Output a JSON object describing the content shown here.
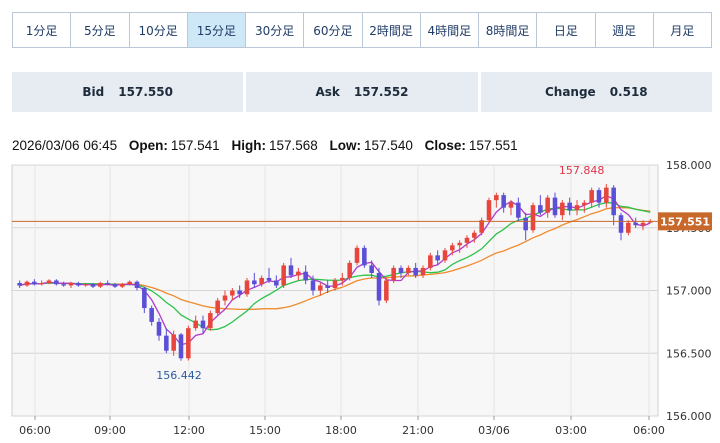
{
  "timeframes": [
    {
      "label": "1分足"
    },
    {
      "label": "5分足"
    },
    {
      "label": "10分足"
    },
    {
      "label": "15分足",
      "active": true
    },
    {
      "label": "30分足"
    },
    {
      "label": "60分足"
    },
    {
      "label": "2時間足"
    },
    {
      "label": "4時間足"
    },
    {
      "label": "8時間足"
    },
    {
      "label": "日足"
    },
    {
      "label": "週足"
    },
    {
      "label": "月足"
    }
  ],
  "quotes": {
    "bid_label": "Bid",
    "bid_value": "157.550",
    "ask_label": "Ask",
    "ask_value": "157.552",
    "change_label": "Change",
    "change_value": "0.518"
  },
  "ohlc": {
    "datetime": "2026/03/06 06:45",
    "open_label": "Open:",
    "open": "157.541",
    "high_label": "High:",
    "high": "157.568",
    "low_label": "Low:",
    "low": "157.540",
    "close_label": "Close:",
    "close": "157.551"
  },
  "chart_data": {
    "type": "candlestick",
    "ylim": [
      156.0,
      158.0
    ],
    "y_ticks": [
      "158.000",
      "157.500",
      "157.000",
      "156.500",
      "156.000"
    ],
    "x_ticks": [
      "06:00",
      "09:00",
      "12:00",
      "15:00",
      "18:00",
      "21:00",
      "03/06",
      "03:00",
      "06:00"
    ],
    "current_price": "157.551",
    "high_annotation": "157.848",
    "low_annotation": "156.442",
    "grid": true,
    "colors": {
      "up": "#e8463c",
      "down": "#5a4fd6",
      "ma_short": "#b33acd",
      "ma_mid": "#2cc24a",
      "ma_long": "#f08a2c",
      "price_line": "#c8682a"
    },
    "candles_ohlc": [
      [
        157.06,
        157.08,
        157.02,
        157.04
      ],
      [
        157.04,
        157.08,
        157.03,
        157.07
      ],
      [
        157.07,
        157.09,
        157.04,
        157.05
      ],
      [
        157.05,
        157.08,
        157.04,
        157.06
      ],
      [
        157.06,
        157.09,
        157.05,
        157.08
      ],
      [
        157.08,
        157.09,
        157.04,
        157.05
      ],
      [
        157.05,
        157.07,
        157.03,
        157.04
      ],
      [
        157.04,
        157.07,
        157.02,
        157.06
      ],
      [
        157.06,
        157.07,
        157.03,
        157.04
      ],
      [
        157.04,
        157.06,
        157.03,
        157.05
      ],
      [
        157.05,
        157.06,
        157.02,
        157.03
      ],
      [
        157.03,
        157.07,
        157.02,
        157.06
      ],
      [
        157.06,
        157.08,
        157.04,
        157.05
      ],
      [
        157.05,
        157.06,
        157.02,
        157.03
      ],
      [
        157.03,
        157.06,
        157.02,
        157.05
      ],
      [
        157.05,
        157.08,
        157.04,
        157.07
      ],
      [
        157.07,
        157.08,
        157.0,
        157.02
      ],
      [
        157.02,
        157.03,
        156.82,
        156.86
      ],
      [
        156.86,
        156.88,
        156.72,
        156.75
      ],
      [
        156.75,
        156.78,
        156.6,
        156.64
      ],
      [
        156.64,
        156.7,
        156.5,
        156.52
      ],
      [
        156.52,
        156.68,
        156.48,
        156.65
      ],
      [
        156.65,
        156.66,
        156.44,
        156.46
      ],
      [
        156.46,
        156.72,
        156.442,
        156.7
      ],
      [
        156.7,
        156.8,
        156.68,
        156.76
      ],
      [
        156.76,
        156.8,
        156.66,
        156.7
      ],
      [
        156.7,
        156.84,
        156.68,
        156.82
      ],
      [
        156.82,
        156.94,
        156.8,
        156.92
      ],
      [
        156.92,
        157.0,
        156.88,
        156.96
      ],
      [
        156.96,
        157.02,
        156.92,
        157.0
      ],
      [
        157.0,
        157.04,
        156.94,
        156.97
      ],
      [
        156.97,
        157.1,
        156.95,
        157.08
      ],
      [
        157.08,
        157.14,
        157.02,
        157.05
      ],
      [
        157.05,
        157.12,
        157.03,
        157.1
      ],
      [
        157.1,
        157.18,
        157.06,
        157.08
      ],
      [
        157.08,
        157.12,
        157.02,
        157.04
      ],
      [
        157.04,
        157.22,
        157.02,
        157.2
      ],
      [
        157.2,
        157.26,
        157.1,
        157.12
      ],
      [
        157.12,
        157.18,
        157.08,
        157.15
      ],
      [
        157.15,
        157.2,
        157.05,
        157.08
      ],
      [
        157.08,
        157.12,
        156.96,
        157.0
      ],
      [
        157.0,
        157.06,
        156.96,
        157.04
      ],
      [
        157.04,
        157.08,
        156.98,
        157.02
      ],
      [
        157.02,
        157.1,
        157.0,
        157.08
      ],
      [
        157.08,
        157.14,
        157.04,
        157.1
      ],
      [
        157.1,
        157.24,
        157.08,
        157.22
      ],
      [
        157.22,
        157.36,
        157.2,
        157.34
      ],
      [
        157.34,
        157.36,
        157.18,
        157.2
      ],
      [
        157.2,
        157.24,
        157.1,
        157.14
      ],
      [
        157.14,
        157.18,
        156.88,
        156.92
      ],
      [
        156.92,
        157.1,
        156.9,
        157.08
      ],
      [
        157.08,
        157.2,
        157.06,
        157.18
      ],
      [
        157.18,
        157.2,
        157.1,
        157.14
      ],
      [
        157.14,
        157.2,
        157.12,
        157.18
      ],
      [
        157.18,
        157.22,
        157.1,
        157.12
      ],
      [
        157.12,
        157.2,
        157.1,
        157.18
      ],
      [
        157.18,
        157.3,
        157.16,
        157.28
      ],
      [
        157.28,
        157.32,
        157.2,
        157.24
      ],
      [
        157.24,
        157.34,
        157.22,
        157.32
      ],
      [
        157.32,
        157.38,
        157.28,
        157.36
      ],
      [
        157.36,
        157.4,
        157.3,
        157.38
      ],
      [
        157.38,
        157.44,
        157.34,
        157.42
      ],
      [
        157.42,
        157.48,
        157.38,
        157.46
      ],
      [
        157.46,
        157.58,
        157.44,
        157.56
      ],
      [
        157.56,
        157.74,
        157.54,
        157.72
      ],
      [
        157.72,
        157.78,
        157.66,
        157.76
      ],
      [
        157.76,
        157.78,
        157.62,
        157.66
      ],
      [
        157.66,
        157.72,
        157.6,
        157.7
      ],
      [
        157.7,
        157.74,
        157.55,
        157.58
      ],
      [
        157.58,
        157.62,
        157.4,
        157.48
      ],
      [
        157.48,
        157.7,
        157.46,
        157.68
      ],
      [
        157.68,
        157.76,
        157.6,
        157.62
      ],
      [
        157.62,
        157.76,
        157.58,
        157.74
      ],
      [
        157.74,
        157.78,
        157.58,
        157.6
      ],
      [
        157.6,
        157.72,
        157.56,
        157.7
      ],
      [
        157.7,
        157.74,
        157.6,
        157.64
      ],
      [
        157.64,
        157.72,
        157.6,
        157.68
      ],
      [
        157.68,
        157.72,
        157.62,
        157.7
      ],
      [
        157.7,
        157.82,
        157.66,
        157.8
      ],
      [
        157.8,
        157.82,
        157.66,
        157.7
      ],
      [
        157.7,
        157.848,
        157.66,
        157.82
      ],
      [
        157.82,
        157.84,
        157.52,
        157.6
      ],
      [
        157.6,
        157.62,
        157.4,
        157.46
      ],
      [
        157.46,
        157.56,
        157.44,
        157.54
      ],
      [
        157.54,
        157.58,
        157.5,
        157.52
      ],
      [
        157.52,
        157.56,
        157.48,
        157.54
      ],
      [
        157.541,
        157.568,
        157.54,
        157.551
      ]
    ]
  }
}
